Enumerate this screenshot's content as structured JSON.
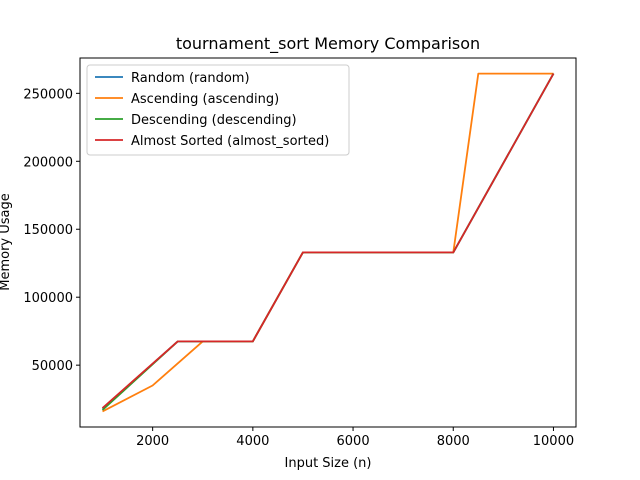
{
  "chart_data": {
    "type": "line",
    "title": "tournament_sort Memory Comparison",
    "xlabel": "Input Size (n)",
    "ylabel": "Memory Usage",
    "xlim": [
      550,
      10450
    ],
    "ylim": [
      4500,
      276000
    ],
    "xticks": [
      2000,
      4000,
      6000,
      8000,
      10000
    ],
    "xtick_labels": [
      "2000",
      "4000",
      "6000",
      "8000",
      "10000"
    ],
    "yticks": [
      50000,
      100000,
      150000,
      200000,
      250000
    ],
    "ytick_labels": [
      "50000",
      "100000",
      "150000",
      "200000",
      "250000"
    ],
    "grid": false,
    "legend_position": "top-left",
    "series": [
      {
        "name": "Random (random)",
        "color": "#1f77b4",
        "x": [
          1000,
          2500,
          4000,
          5000,
          8000,
          10000
        ],
        "y": [
          18000,
          67500,
          67500,
          133000,
          133000,
          264500
        ]
      },
      {
        "name": "Ascending (ascending)",
        "color": "#ff7f0e",
        "x": [
          1000,
          2000,
          3000,
          4000,
          5000,
          8000,
          8500,
          10000
        ],
        "y": [
          16000,
          35000,
          67500,
          67500,
          133000,
          133000,
          264500,
          264500
        ]
      },
      {
        "name": "Descending (descending)",
        "color": "#2ca02c",
        "x": [
          1000,
          2500,
          4000,
          5000,
          8000,
          10000
        ],
        "y": [
          17000,
          67500,
          67500,
          133000,
          133000,
          264500
        ]
      },
      {
        "name": "Almost Sorted (almost_sorted)",
        "color": "#d62728",
        "x": [
          1000,
          2500,
          4000,
          5000,
          8000,
          10000
        ],
        "y": [
          18500,
          67500,
          67500,
          133000,
          133000,
          264500
        ]
      }
    ]
  }
}
